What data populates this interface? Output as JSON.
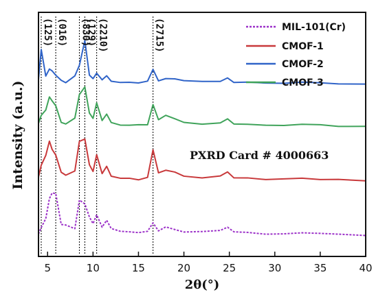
{
  "chart_data": {
    "type": "line",
    "xlabel": "2θ(°)",
    "ylabel": "Intensity (a.u.)",
    "xlim": [
      4,
      40
    ],
    "xticks": [
      5,
      10,
      15,
      20,
      25,
      30,
      35,
      40
    ],
    "annotation": "PXRD Card # 4000663",
    "legend_position": "top-right",
    "peak_markers": [
      {
        "label": "(125)",
        "x": 4.3
      },
      {
        "label": "(016)",
        "x": 5.9
      },
      {
        "label": "(830)",
        "x": 8.5
      },
      {
        "label": "(129)",
        "x": 9.1
      },
      {
        "label": "(2210)",
        "x": 10.4
      },
      {
        "label": "(2715)",
        "x": 16.6
      }
    ],
    "series": [
      {
        "name": "MIL-101(Cr)",
        "color": "#9b30c8",
        "dashed": true,
        "x": [
          4.0,
          4.3,
          4.8,
          5.2,
          5.5,
          5.9,
          6.5,
          7.0,
          8.0,
          8.5,
          9.1,
          9.6,
          10.0,
          10.4,
          11.0,
          11.5,
          12.0,
          13.0,
          14.0,
          15.0,
          16.0,
          16.6,
          17.2,
          18.0,
          19.0,
          20.0,
          22.0,
          24.0,
          24.8,
          25.5,
          27.0,
          29.0,
          31.0,
          33.0,
          35.0,
          37.0,
          40.0
        ],
        "y": [
          10,
          18,
          28,
          54,
          62,
          60,
          22,
          20,
          17,
          52,
          48,
          30,
          22,
          34,
          18,
          26,
          16,
          13,
          12,
          11,
          12,
          24,
          14,
          18,
          15,
          12,
          12,
          14,
          18,
          12,
          11,
          10,
          10,
          11,
          10,
          9,
          8
        ]
      },
      {
        "name": "CMOF-1",
        "color": "#c8383a",
        "dashed": false,
        "x": [
          4.0,
          4.3,
          4.8,
          5.2,
          5.5,
          5.9,
          6.5,
          7.0,
          8.0,
          8.5,
          9.1,
          9.6,
          10.0,
          10.4,
          11.0,
          11.5,
          12.0,
          13.0,
          14.0,
          15.0,
          16.0,
          16.6,
          17.2,
          18.0,
          19.0,
          20.0,
          22.0,
          24.0,
          24.8,
          25.5,
          27.0,
          29.0,
          31.0,
          33.0,
          35.0,
          37.0,
          40.0
        ],
        "y": [
          12,
          28,
          40,
          58,
          48,
          40,
          18,
          16,
          20,
          58,
          62,
          28,
          20,
          42,
          18,
          26,
          14,
          12,
          11,
          10,
          12,
          48,
          18,
          22,
          20,
          14,
          12,
          14,
          20,
          12,
          11,
          10,
          10,
          11,
          10,
          9,
          8
        ]
      },
      {
        "name": "CMOF-2",
        "color": "#2f63c8",
        "dashed": false,
        "x": [
          4.0,
          4.3,
          4.8,
          5.2,
          5.5,
          5.9,
          6.5,
          7.0,
          8.0,
          8.5,
          9.1,
          9.6,
          10.0,
          10.4,
          11.0,
          11.5,
          12.0,
          13.0,
          14.0,
          15.0,
          16.0,
          16.6,
          17.2,
          18.0,
          19.0,
          20.0,
          22.0,
          24.0,
          24.8,
          25.5,
          27.0,
          29.0,
          31.0,
          33.0,
          35.0,
          37.0,
          40.0
        ],
        "y": [
          14,
          52,
          18,
          28,
          24,
          20,
          12,
          10,
          18,
          32,
          64,
          20,
          16,
          22,
          14,
          18,
          12,
          11,
          10,
          10,
          11,
          26,
          12,
          16,
          14,
          12,
          11,
          12,
          16,
          11,
          10,
          10,
          10,
          10,
          10,
          9,
          9
        ]
      },
      {
        "name": "CMOF-3",
        "color": "#3fa35a",
        "dashed": false,
        "x": [
          4.0,
          4.3,
          4.8,
          5.2,
          5.5,
          5.9,
          6.5,
          7.0,
          8.0,
          8.5,
          9.1,
          9.6,
          10.0,
          10.4,
          11.0,
          11.5,
          12.0,
          13.0,
          14.0,
          15.0,
          16.0,
          16.6,
          17.2,
          18.0,
          19.0,
          20.0,
          22.0,
          24.0,
          24.8,
          25.5,
          27.0,
          29.0,
          31.0,
          33.0,
          35.0,
          37.0,
          40.0
        ],
        "y": [
          12,
          22,
          30,
          46,
          40,
          34,
          14,
          12,
          18,
          48,
          58,
          26,
          18,
          38,
          16,
          24,
          13,
          11,
          10,
          10,
          11,
          36,
          16,
          22,
          18,
          13,
          12,
          13,
          18,
          12,
          11,
          10,
          10,
          11,
          10,
          9,
          9
        ]
      }
    ]
  }
}
